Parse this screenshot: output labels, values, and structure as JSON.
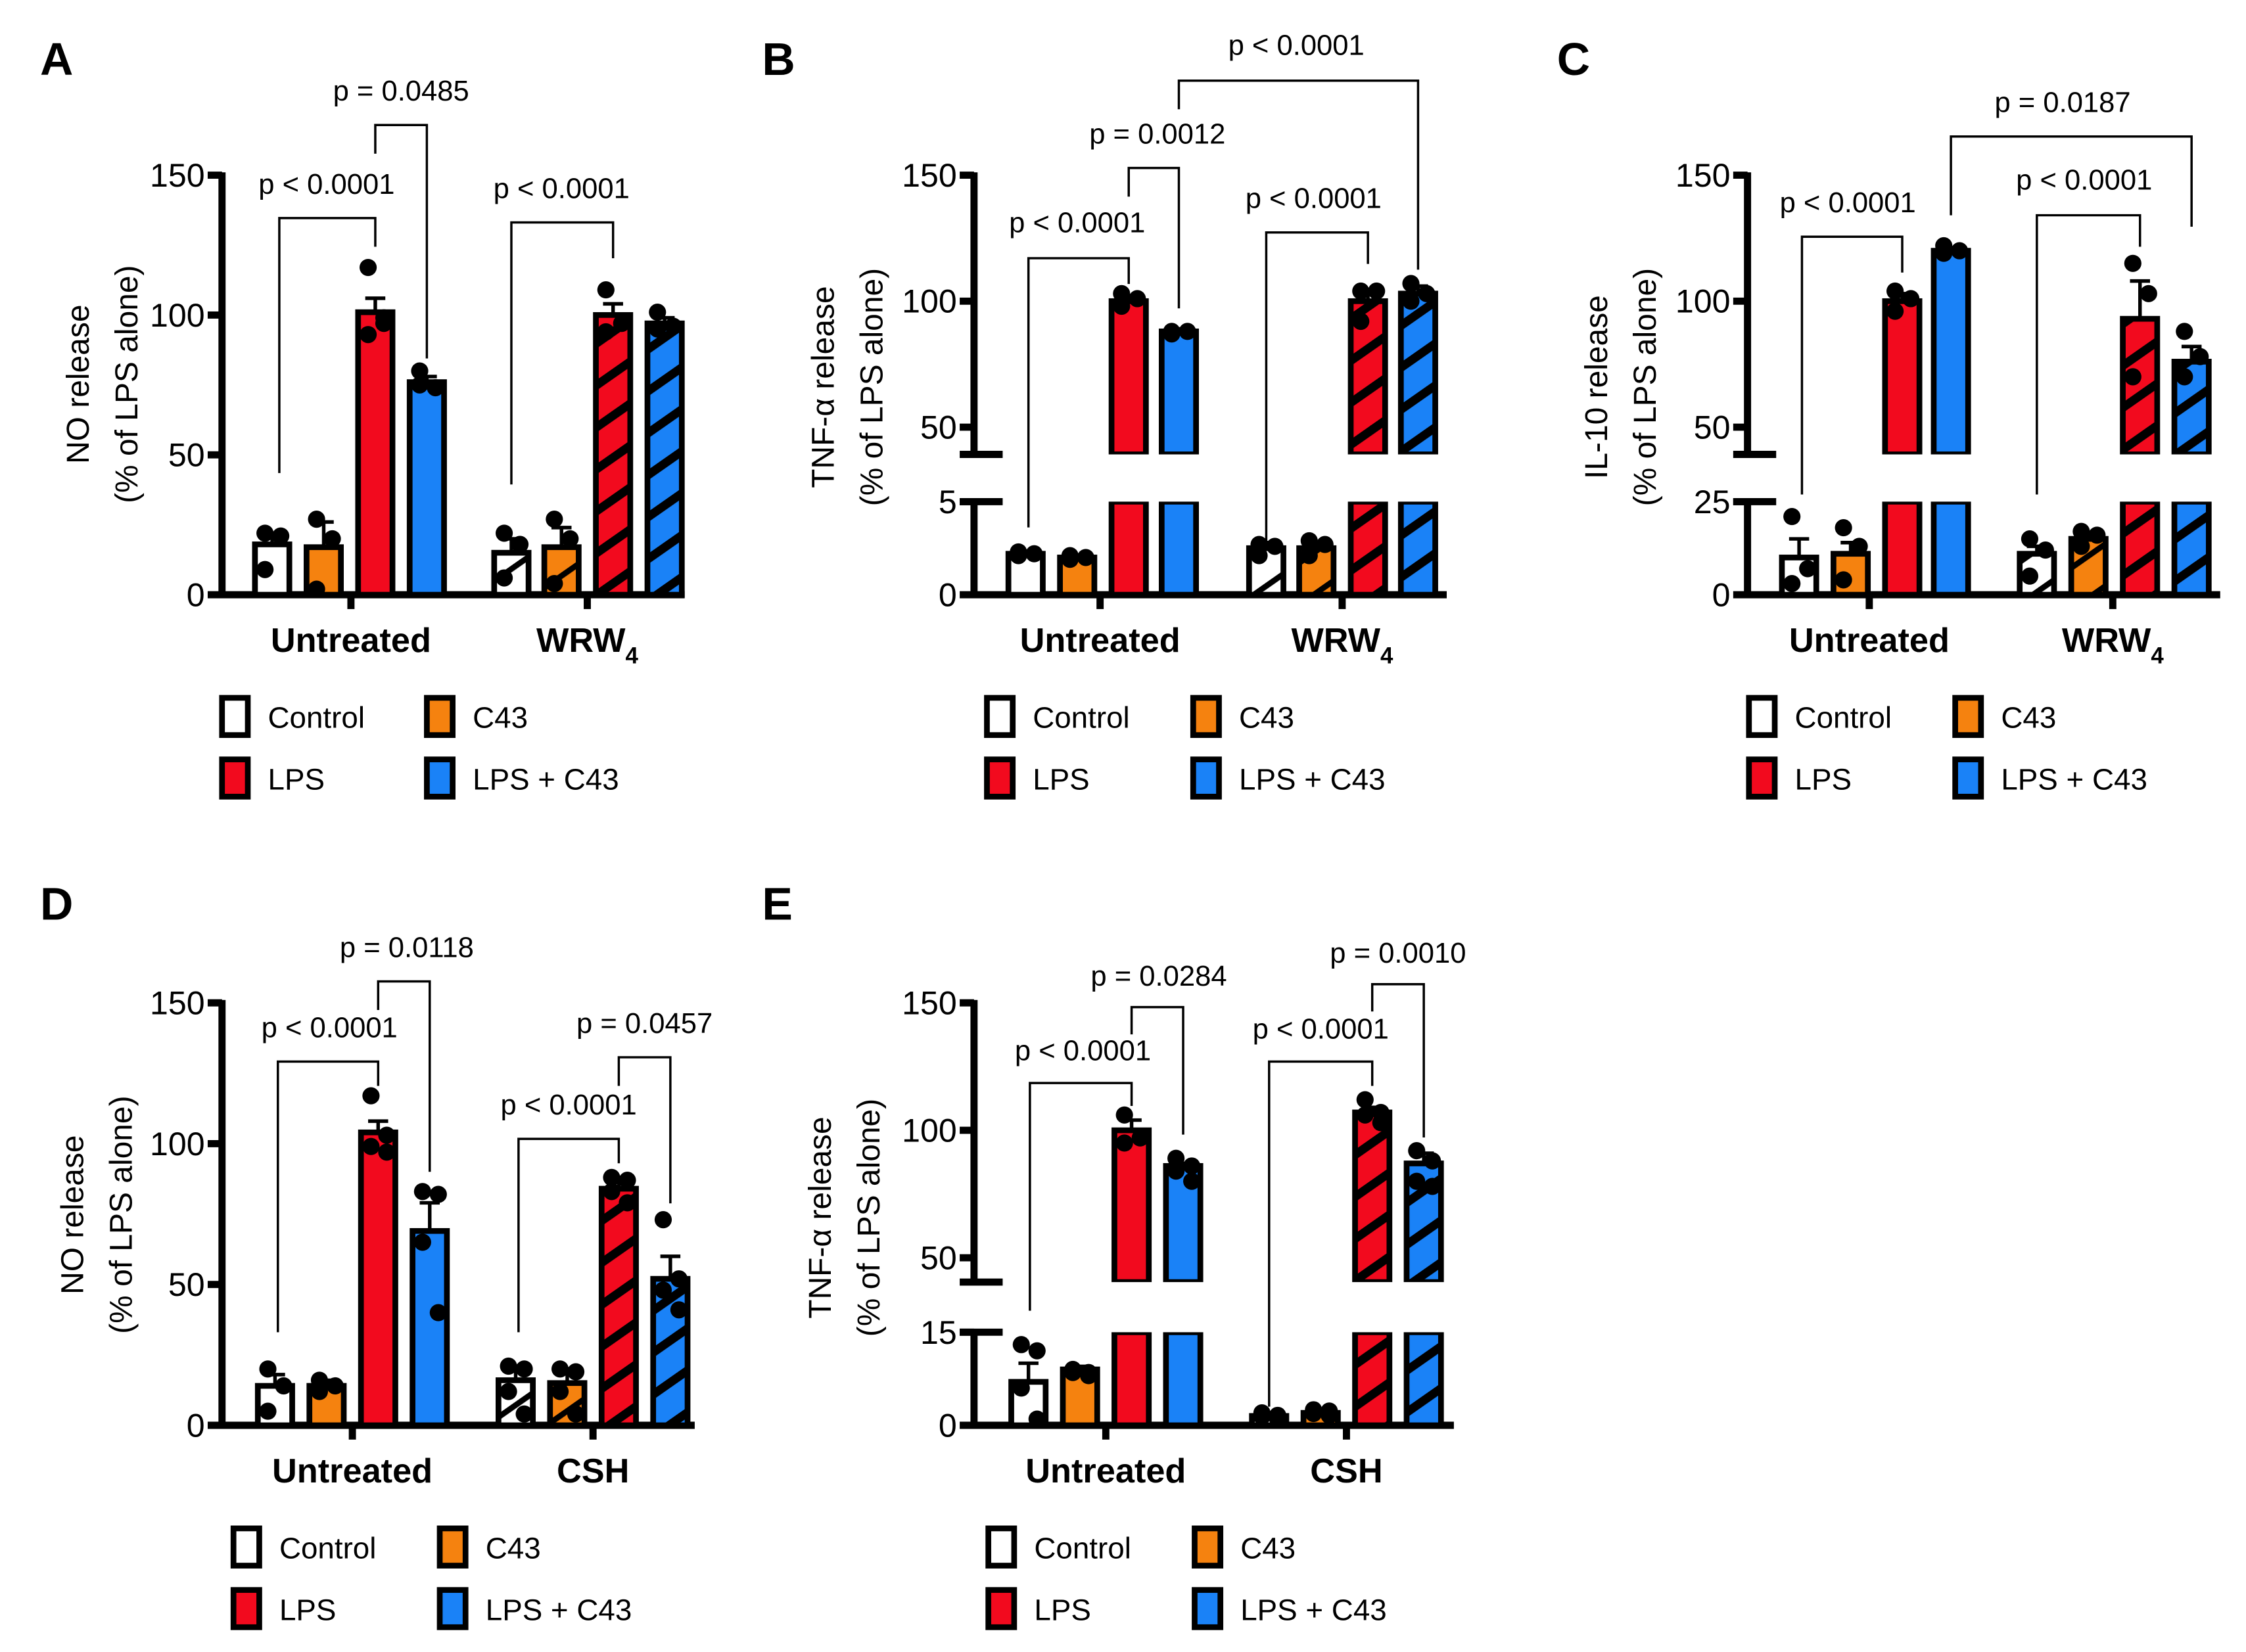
{
  "colors": {
    "control": "#ffffff",
    "c43": "#f5820f",
    "lps": "#f20a1e",
    "lps_c43": "#1a82f7",
    "hatch": "#000000"
  },
  "legend": [
    {
      "label": "Control",
      "color": "#ffffff"
    },
    {
      "label": "C43",
      "color": "#f5820f"
    },
    {
      "label": "LPS",
      "color": "#f20a1e"
    },
    {
      "label": "LPS + C43",
      "color": "#1a82f7"
    }
  ],
  "chart_data": [
    {
      "panel": "A",
      "type": "bar",
      "ylabel": [
        "NO release",
        "(% of LPS alone)"
      ],
      "yticks": [
        0,
        50,
        100,
        150
      ],
      "ylim": [
        0,
        150
      ],
      "groups": [
        {
          "text": "Untreated",
          "sub": ""
        },
        {
          "text": "WRW",
          "sub": "4"
        }
      ],
      "series": [
        "Control",
        "C43",
        "LPS",
        "LPS + C43"
      ],
      "values": [
        [
          18,
          17,
          101,
          76
        ],
        [
          15,
          17,
          100,
          97
        ]
      ],
      "sem": [
        [
          4,
          9,
          5,
          2
        ],
        [
          5,
          7,
          4,
          2
        ]
      ],
      "points": [
        [
          [
            22,
            21,
            9
          ],
          [
            27,
            20,
            2
          ],
          [
            117,
            99,
            93,
            97
          ],
          [
            80,
            74,
            75
          ]
        ],
        [
          [
            22,
            18,
            6
          ],
          [
            27,
            20,
            4
          ],
          [
            109,
            97,
            94
          ],
          [
            101,
            96,
            95
          ]
        ]
      ],
      "comparisons": [
        {
          "a": "Untreated Control",
          "b": "Untreated LPS",
          "label": "p < 0.0001"
        },
        {
          "a": "Untreated LPS",
          "b": "Untreated LPS + C43",
          "label": "p = 0.0485"
        },
        {
          "a": "WRW4 Control",
          "b": "WRW4 LPS",
          "label": "p < 0.0001"
        }
      ]
    },
    {
      "panel": "B",
      "type": "bar",
      "ylabel": [
        "TNF-α release",
        "(% of LPS alone)"
      ],
      "yticks": [
        0,
        5,
        50,
        100,
        150
      ],
      "ylim": [
        0,
        150
      ],
      "axis_break": [
        5,
        50
      ],
      "groups": [
        {
          "text": "Untreated",
          "sub": ""
        },
        {
          "text": "WRW",
          "sub": "4"
        }
      ],
      "series": [
        "Control",
        "C43",
        "LPS",
        "LPS + C43"
      ],
      "values": [
        [
          2.2,
          2.0,
          100,
          88
        ],
        [
          2.5,
          2.5,
          100,
          103
        ]
      ],
      "sem": [
        [
          0.1,
          0.1,
          2,
          1
        ],
        [
          0.3,
          0.3,
          4,
          3
        ]
      ],
      "points": [
        [
          [
            2.3,
            2.2,
            2.1
          ],
          [
            2.1,
            2.0,
            1.9
          ],
          [
            103,
            101,
            98
          ],
          [
            88,
            88,
            87
          ]
        ],
        [
          [
            2.7,
            2.6,
            2.1
          ],
          [
            2.9,
            2.7,
            2.1
          ],
          [
            104,
            104,
            92
          ],
          [
            107,
            103,
            100
          ]
        ]
      ],
      "comparisons": [
        {
          "a": "Untreated Control",
          "b": "Untreated LPS",
          "label": "p < 0.0001"
        },
        {
          "a": "Untreated LPS",
          "b": "Untreated LPS + C43",
          "label": "p = 0.0012"
        },
        {
          "a": "WRW4 Control",
          "b": "WRW4 LPS",
          "label": "p < 0.0001"
        },
        {
          "a": "Untreated LPS + C43",
          "b": "WRW4 LPS + C43",
          "label": "p < 0.0001"
        }
      ]
    },
    {
      "panel": "C",
      "type": "bar",
      "ylabel": [
        "IL-10 release",
        "(% of LPS alone)"
      ],
      "yticks": [
        0,
        25,
        50,
        100,
        150
      ],
      "ylim": [
        0,
        150
      ],
      "axis_break": [
        25,
        50
      ],
      "groups": [
        {
          "text": "Untreated",
          "sub": ""
        },
        {
          "text": "WRW",
          "sub": "4"
        }
      ],
      "series": [
        "Control",
        "C43",
        "LPS",
        "LPS + C43"
      ],
      "values": [
        [
          10,
          11,
          100,
          120
        ],
        [
          11,
          15,
          93,
          76
        ]
      ],
      "sem": [
        [
          5,
          3,
          3,
          1
        ],
        [
          2,
          1,
          15,
          6
        ]
      ],
      "points": [
        [
          [
            21,
            7,
            3
          ],
          [
            18,
            13,
            4
          ],
          [
            104,
            101,
            96
          ],
          [
            122,
            120,
            119
          ]
        ],
        [
          [
            15,
            12,
            5
          ],
          [
            17,
            16,
            13
          ],
          [
            115,
            103,
            70
          ],
          [
            88,
            78,
            70
          ]
        ]
      ],
      "comparisons": [
        {
          "a": "Untreated Control",
          "b": "Untreated LPS",
          "label": "p < 0.0001"
        },
        {
          "a": "WRW4 Control",
          "b": "WRW4 LPS",
          "label": "p < 0.0001"
        },
        {
          "a": "Untreated LPS + C43",
          "b": "WRW4 LPS + C43",
          "label": "p = 0.0187"
        }
      ]
    },
    {
      "panel": "D",
      "type": "bar",
      "ylabel": [
        "NO release",
        "(% of LPS alone)"
      ],
      "yticks": [
        0,
        50,
        100,
        150
      ],
      "ylim": [
        0,
        150
      ],
      "groups": [
        {
          "text": "Untreated",
          "sub": ""
        },
        {
          "text": "CSH",
          "sub": ""
        }
      ],
      "series": [
        "Control",
        "C43",
        "LPS",
        "LPS + C43"
      ],
      "values": [
        [
          14,
          14,
          104,
          69
        ],
        [
          16,
          15,
          84,
          52
        ]
      ],
      "sem": [
        [
          4,
          2,
          4,
          10
        ],
        [
          5,
          5,
          4,
          8
        ]
      ],
      "points": [
        [
          [
            20,
            14,
            5
          ],
          [
            16,
            14,
            12
          ],
          [
            117,
            103,
            99,
            97
          ],
          [
            83,
            82,
            65,
            40
          ]
        ],
        [
          [
            21,
            20,
            12,
            4
          ],
          [
            20,
            19,
            12,
            4
          ],
          [
            88,
            87,
            83,
            79
          ],
          [
            73,
            52,
            48,
            41
          ]
        ]
      ],
      "comparisons": [
        {
          "a": "Untreated Control",
          "b": "Untreated LPS",
          "label": "p < 0.0001"
        },
        {
          "a": "Untreated LPS",
          "b": "Untreated LPS + C43",
          "label": "p = 0.0118"
        },
        {
          "a": "CSH Control",
          "b": "CSH LPS",
          "label": "p < 0.0001"
        },
        {
          "a": "CSH LPS",
          "b": "CSH LPS + C43",
          "label": "p = 0.0457"
        }
      ]
    },
    {
      "panel": "E",
      "type": "bar",
      "ylabel": [
        "TNF-α release",
        "(% of LPS alone)"
      ],
      "yticks": [
        0,
        15,
        50,
        100,
        150
      ],
      "ylim": [
        0,
        150
      ],
      "axis_break": [
        15,
        50
      ],
      "groups": [
        {
          "text": "Untreated",
          "sub": ""
        },
        {
          "text": "CSH",
          "sub": ""
        }
      ],
      "series": [
        "Control",
        "C43",
        "LPS",
        "LPS + C43"
      ],
      "values": [
        [
          7,
          9,
          100,
          86
        ],
        [
          1.5,
          2,
          107,
          87
        ]
      ],
      "sem": [
        [
          3,
          0.5,
          4,
          1
        ],
        [
          0.3,
          0.3,
          2,
          4
        ]
      ],
      "points": [
        [
          [
            13,
            12,
            6,
            1
          ],
          [
            9,
            8.5,
            8.5,
            8
          ],
          [
            106,
            97,
            95
          ],
          [
            89,
            86,
            84,
            80
          ]
        ],
        [
          [
            2,
            1.6,
            1.4,
            1
          ],
          [
            2.5,
            2.3,
            1.9,
            1.6
          ],
          [
            112,
            107,
            106,
            103
          ],
          [
            92,
            88,
            80,
            78
          ]
        ]
      ],
      "comparisons": [
        {
          "a": "Untreated Control",
          "b": "Untreated LPS",
          "label": "p < 0.0001"
        },
        {
          "a": "Untreated LPS",
          "b": "Untreated LPS + C43",
          "label": "p = 0.0284"
        },
        {
          "a": "CSH Control",
          "b": "CSH LPS",
          "label": "p < 0.0001"
        },
        {
          "a": "CSH LPS",
          "b": "CSH LPS + C43",
          "label": "p = 0.0010"
        }
      ]
    }
  ]
}
